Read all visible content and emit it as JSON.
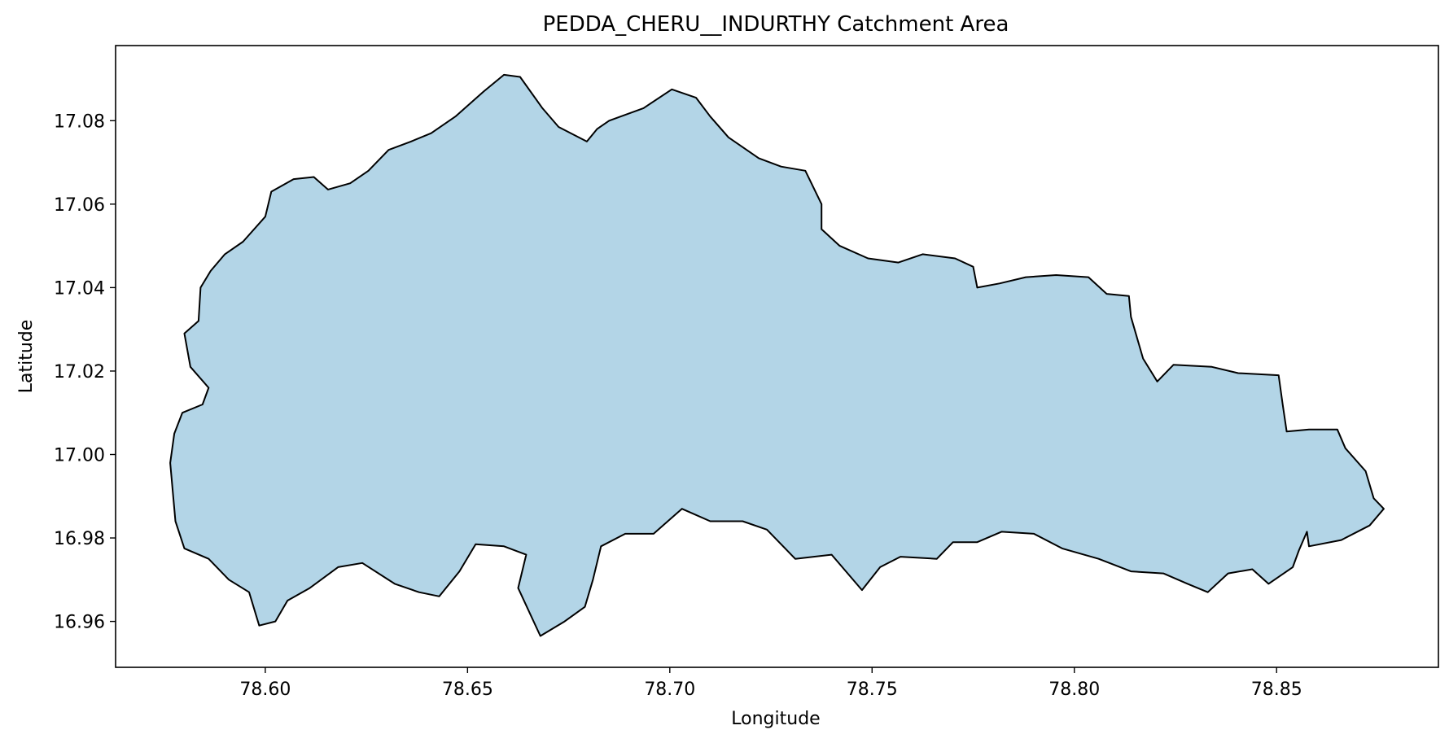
{
  "chart_data": {
    "type": "map",
    "title": "PEDDA_CHERU__INDURTHY Catchment Area",
    "xlabel": "Longitude",
    "ylabel": "Latitude",
    "xlim": [
      78.563,
      78.89
    ],
    "ylim": [
      16.949,
      17.098
    ],
    "x_ticks": [
      {
        "value": 78.6,
        "label": "78.60"
      },
      {
        "value": 78.65,
        "label": "78.65"
      },
      {
        "value": 78.7,
        "label": "78.70"
      },
      {
        "value": 78.75,
        "label": "78.75"
      },
      {
        "value": 78.8,
        "label": "78.80"
      },
      {
        "value": 78.85,
        "label": "78.85"
      }
    ],
    "y_ticks": [
      {
        "value": 16.96,
        "label": "16.96"
      },
      {
        "value": 16.98,
        "label": "16.98"
      },
      {
        "value": 17.0,
        "label": "17.00"
      },
      {
        "value": 17.02,
        "label": "17.02"
      },
      {
        "value": 17.04,
        "label": "17.04"
      },
      {
        "value": 17.06,
        "label": "17.06"
      },
      {
        "value": 17.08,
        "label": "17.08"
      }
    ],
    "grid": false,
    "fill_color": "#b3d5e7",
    "edge_color": "#000000",
    "boundary": [
      [
        78.5765,
        16.998
      ],
      [
        78.5778,
        16.984
      ],
      [
        78.58,
        16.9775
      ],
      [
        78.586,
        16.975
      ],
      [
        78.591,
        16.97
      ],
      [
        78.596,
        16.967
      ],
      [
        78.5985,
        16.959
      ],
      [
        78.6025,
        16.96
      ],
      [
        78.6055,
        16.965
      ],
      [
        78.611,
        16.968
      ],
      [
        78.618,
        16.973
      ],
      [
        78.624,
        16.974
      ],
      [
        78.632,
        16.969
      ],
      [
        78.638,
        16.967
      ],
      [
        78.643,
        16.966
      ],
      [
        78.648,
        16.972
      ],
      [
        78.652,
        16.9785
      ],
      [
        78.659,
        16.978
      ],
      [
        78.6645,
        16.976
      ],
      [
        78.6625,
        16.968
      ],
      [
        78.668,
        16.9565
      ],
      [
        78.674,
        16.96
      ],
      [
        78.679,
        16.9635
      ],
      [
        78.681,
        16.97
      ],
      [
        78.683,
        16.978
      ],
      [
        78.689,
        16.981
      ],
      [
        78.696,
        16.981
      ],
      [
        78.703,
        16.987
      ],
      [
        78.71,
        16.984
      ],
      [
        78.718,
        16.984
      ],
      [
        78.724,
        16.982
      ],
      [
        78.731,
        16.975
      ],
      [
        78.74,
        16.976
      ],
      [
        78.7475,
        16.9675
      ],
      [
        78.752,
        16.973
      ],
      [
        78.757,
        16.9755
      ],
      [
        78.766,
        16.975
      ],
      [
        78.77,
        16.979
      ],
      [
        78.776,
        16.979
      ],
      [
        78.782,
        16.9815
      ],
      [
        78.79,
        16.981
      ],
      [
        78.797,
        16.9775
      ],
      [
        78.806,
        16.975
      ],
      [
        78.814,
        16.972
      ],
      [
        78.822,
        16.9715
      ],
      [
        78.828,
        16.969
      ],
      [
        78.833,
        16.967
      ],
      [
        78.838,
        16.9715
      ],
      [
        78.844,
        16.9725
      ],
      [
        78.848,
        16.969
      ],
      [
        78.854,
        16.973
      ],
      [
        78.8555,
        16.977
      ],
      [
        78.8575,
        16.9815
      ],
      [
        78.858,
        16.978
      ],
      [
        78.866,
        16.9795
      ],
      [
        78.873,
        16.983
      ],
      [
        78.8765,
        16.987
      ],
      [
        78.874,
        16.9895
      ],
      [
        78.872,
        16.996
      ],
      [
        78.867,
        17.0015
      ],
      [
        78.865,
        17.006
      ],
      [
        78.858,
        17.006
      ],
      [
        78.8525,
        17.0055
      ],
      [
        78.8515,
        17.012
      ],
      [
        78.8505,
        17.019
      ],
      [
        78.8405,
        17.0195
      ],
      [
        78.834,
        17.021
      ],
      [
        78.8245,
        17.0215
      ],
      [
        78.8205,
        17.0175
      ],
      [
        78.817,
        17.023
      ],
      [
        78.814,
        17.033
      ],
      [
        78.8135,
        17.038
      ],
      [
        78.808,
        17.0385
      ],
      [
        78.8035,
        17.0425
      ],
      [
        78.7955,
        17.043
      ],
      [
        78.788,
        17.0425
      ],
      [
        78.7815,
        17.041
      ],
      [
        78.776,
        17.04
      ],
      [
        78.775,
        17.045
      ],
      [
        78.7705,
        17.047
      ],
      [
        78.7625,
        17.048
      ],
      [
        78.7565,
        17.046
      ],
      [
        78.749,
        17.047
      ],
      [
        78.742,
        17.05
      ],
      [
        78.7375,
        17.054
      ],
      [
        78.7375,
        17.06
      ],
      [
        78.7335,
        17.068
      ],
      [
        78.7275,
        17.069
      ],
      [
        78.722,
        17.071
      ],
      [
        78.7145,
        17.076
      ],
      [
        78.71,
        17.081
      ],
      [
        78.7065,
        17.0855
      ],
      [
        78.7005,
        17.0875
      ],
      [
        78.6935,
        17.083
      ],
      [
        78.685,
        17.08
      ],
      [
        78.682,
        17.078
      ],
      [
        78.6795,
        17.075
      ],
      [
        78.6725,
        17.0785
      ],
      [
        78.6685,
        17.083
      ],
      [
        78.663,
        17.0905
      ],
      [
        78.659,
        17.091
      ],
      [
        78.654,
        17.087
      ],
      [
        78.647,
        17.081
      ],
      [
        78.641,
        17.077
      ],
      [
        78.636,
        17.075
      ],
      [
        78.6305,
        17.073
      ],
      [
        78.6255,
        17.068
      ],
      [
        78.621,
        17.065
      ],
      [
        78.6155,
        17.0635
      ],
      [
        78.612,
        17.0665
      ],
      [
        78.607,
        17.066
      ],
      [
        78.6015,
        17.063
      ],
      [
        78.6,
        17.057
      ],
      [
        78.5945,
        17.051
      ],
      [
        78.59,
        17.048
      ],
      [
        78.5865,
        17.044
      ],
      [
        78.584,
        17.04
      ],
      [
        78.5835,
        17.032
      ],
      [
        78.58,
        17.029
      ],
      [
        78.5815,
        17.021
      ],
      [
        78.586,
        17.016
      ],
      [
        78.5845,
        17.012
      ],
      [
        78.5795,
        17.01
      ],
      [
        78.5775,
        17.005
      ],
      [
        78.5765,
        16.998
      ]
    ]
  }
}
